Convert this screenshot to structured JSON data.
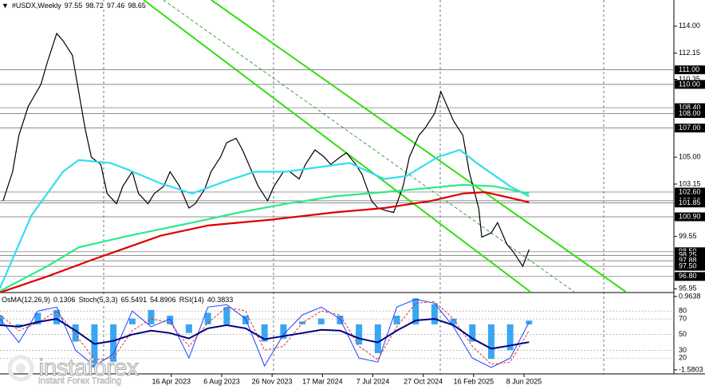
{
  "chart_data": [
    {
      "type": "line",
      "title": "#USDX,Weekly",
      "ohlc": [
        97.55,
        98.72,
        97.46,
        98.65
      ],
      "xlim": [
        0,
        214
      ],
      "xticks": [
        {
          "value": 54.4,
          "label": "16 Apr 2023"
        },
        {
          "value": 70.4,
          "label": "6 Aug 2023"
        },
        {
          "value": 86.4,
          "label": "26 Nov 2023"
        },
        {
          "value": 102.4,
          "label": "17 Mar 2024"
        },
        {
          "value": 118.4,
          "label": "7 Jul 2024"
        },
        {
          "value": 134.4,
          "label": "27 Oct 2024"
        },
        {
          "value": 150.4,
          "label": "16 Feb 2025"
        },
        {
          "value": 166.4,
          "label": "8 Jun 2025"
        }
      ],
      "ylim": [
        95.75,
        115.8
      ],
      "yticks": [
        {
          "value": 114,
          "label": "114.00"
        },
        112.15,
        110.35,
        {
          "value": 105,
          "label": "105.00"
        },
        103.15,
        99.55,
        95.95
      ],
      "levels": [
        {
          "value": 111,
          "label": "111.00"
        },
        {
          "value": 110,
          "label": "110.00"
        },
        {
          "value": 108.4,
          "label": "108.40"
        },
        {
          "value": 108,
          "label": "108.00"
        },
        {
          "value": 107,
          "label": "107.00"
        },
        {
          "value": 102.6,
          "label": "102.60"
        },
        {
          "value": 102,
          "label": "102.00"
        },
        101.85,
        {
          "value": 100.9,
          "label": "100.90"
        },
        {
          "value": 98.5,
          "label": "98.50"
        },
        98.25,
        97.88,
        {
          "value": 97.5,
          "label": "97.50"
        },
        {
          "value": 96.8,
          "label": "96.80"
        }
      ],
      "series": [
        {
          "color": "#000000",
          "x": [
            1,
            4,
            6,
            9,
            13,
            15,
            18,
            20,
            23,
            25,
            27,
            29,
            32,
            34,
            37,
            39,
            42,
            44,
            47,
            49,
            52,
            54,
            57,
            60,
            62,
            65,
            67,
            70,
            72,
            75,
            77,
            80,
            82,
            85,
            87,
            90,
            92,
            95,
            97,
            100,
            103,
            105,
            108,
            110,
            113,
            115,
            118,
            120,
            123,
            125,
            128,
            130,
            133,
            135,
            138,
            140,
            142,
            144,
            147,
            149,
            152,
            153,
            156,
            158,
            161,
            163,
            166,
            168
          ],
          "values": [
            102,
            104,
            106.5,
            108.5,
            110,
            111.5,
            113.5,
            113,
            112,
            109.5,
            107,
            105,
            104.5,
            102.5,
            101.8,
            103,
            104,
            102.5,
            101.8,
            102.5,
            103,
            104,
            103,
            101.5,
            101.8,
            102.8,
            104,
            105,
            106,
            106.3,
            105.5,
            104,
            103,
            102,
            103,
            104,
            104,
            103.5,
            104.5,
            105.5,
            105,
            104.5,
            105,
            105.3,
            104.5,
            103.8,
            102,
            101.5,
            101.3,
            101.2,
            103,
            105,
            106.5,
            107,
            108,
            109.5,
            108.5,
            107.5,
            106.5,
            104,
            101.5,
            99.5,
            99.8,
            100.5,
            99,
            98.5,
            97.5,
            98.65
          ]
        },
        {
          "color": "#33ddf0",
          "x": [
            0,
            10,
            20,
            25,
            35,
            40,
            51,
            61,
            71,
            81,
            91,
            101,
            111,
            122,
            129,
            139,
            146,
            152,
            162,
            168
          ],
          "values": [
            96,
            101,
            104,
            104.8,
            104.6,
            104.2,
            103.2,
            102.5,
            103.3,
            104,
            104,
            104.3,
            104.6,
            103.5,
            103.7,
            105,
            105.5,
            104.5,
            103,
            102.3
          ]
        },
        {
          "color": "#2ee88a",
          "x": [
            0,
            15,
            25,
            41,
            61,
            76,
            91,
            106,
            122,
            137,
            147,
            157,
            168
          ],
          "values": [
            95.8,
            97.5,
            98.8,
            99.6,
            100.5,
            101.2,
            101.8,
            102.3,
            102.6,
            102.9,
            103.1,
            103,
            102.5
          ]
        },
        {
          "color": "#dd0000",
          "x": [
            0,
            15,
            30,
            51,
            66,
            86,
            106,
            122,
            137,
            147,
            154,
            168
          ],
          "values": [
            95.7,
            96.8,
            98,
            99.6,
            100.3,
            100.7,
            101.2,
            101.5,
            102,
            102.5,
            102.6,
            101.9
          ]
        }
      ],
      "trendlines": [
        {
          "x": [
            45.6,
            168.4
          ],
          "y": [
            115.8,
            95.75
          ],
          "color": "#33dd11",
          "dashed": false
        },
        {
          "x": [
            67.1,
            198.7
          ],
          "y": [
            115.8,
            95.75
          ],
          "color": "#33dd11",
          "dashed": false
        },
        {
          "x": [
            51.9,
            182.3
          ],
          "y": [
            115.8,
            95.75
          ],
          "color": "#118811",
          "dashed": true
        }
      ]
    },
    {
      "type": "line",
      "xlim": [
        0,
        214
      ],
      "ylim": [
        5,
        98.5
      ],
      "yticks": [
        80,
        70,
        50,
        30,
        20
      ],
      "y2lim": [
        -1.5803,
        0.9638
      ],
      "y2ticks": [
        0.9638,
        -1.5803
      ],
      "x": [
        0,
        6,
        12,
        18,
        24,
        30,
        36,
        42,
        48,
        54,
        60,
        66,
        72,
        78,
        84,
        90,
        96,
        102,
        108,
        114,
        120,
        126,
        132,
        138,
        144,
        150,
        156,
        162,
        168
      ],
      "series": [
        {
          "name": "OsMA(12,26,9)",
          "type": "bar",
          "axis": "y2",
          "color": "#3aa6f0",
          "values": [
            0.3,
            -0.1,
            0.4,
            0.5,
            -0.6,
            -1.5,
            -1.3,
            0.2,
            0.5,
            0.3,
            -0.3,
            0.4,
            0.6,
            0.3,
            -0.6,
            -0.5,
            0.1,
            0.2,
            0.3,
            -0.7,
            -1.0,
            0.3,
            0.9,
            0.7,
            0.2,
            -0.6,
            -1.2,
            -0.9,
            0.1306
          ]
        },
        {
          "name": "Stoch(5,3,3)",
          "color": "#2040ff",
          "values": [
            70,
            40,
            80,
            85,
            30,
            10,
            25,
            80,
            60,
            70,
            20,
            85,
            88,
            70,
            10,
            50,
            75,
            85,
            70,
            20,
            15,
            85,
            95,
            90,
            60,
            20,
            8,
            20,
            65.5491
          ]
        },
        {
          "color": "#e03030",
          "dashed": true,
          "values": [
            75,
            55,
            65,
            80,
            50,
            18,
            20,
            55,
            70,
            65,
            35,
            65,
            85,
            80,
            30,
            35,
            65,
            80,
            75,
            35,
            18,
            60,
            90,
            92,
            70,
            35,
            12,
            15,
            54.8906
          ]
        },
        {
          "name": "RSI(14)",
          "color": "#000080",
          "values": [
            62,
            60,
            66,
            70,
            55,
            38,
            42,
            50,
            55,
            52,
            45,
            58,
            62,
            58,
            44,
            48,
            52,
            56,
            55,
            45,
            40,
            55,
            68,
            70,
            62,
            45,
            32,
            36,
            40.3833
          ]
        }
      ]
    }
  ],
  "logo": {
    "brand": "instaforex",
    "tagline": "Instant Forex Trading"
  }
}
